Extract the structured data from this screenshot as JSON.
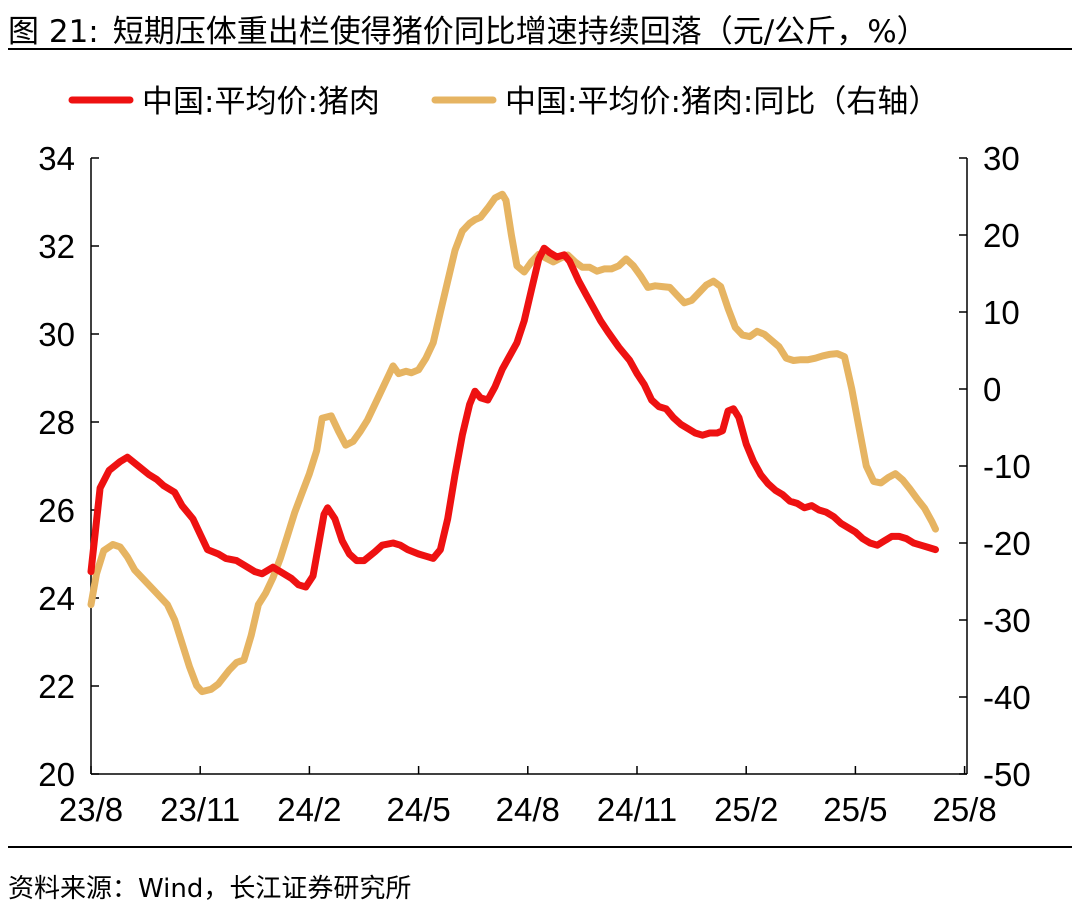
{
  "title": {
    "figure_no": "图 21:",
    "text": "短期压体重出栏使得猪价同比增速持续回落（元/公斤，%）"
  },
  "source": "资料来源：Wind，长江证券研究所",
  "colors": {
    "price": "#ee1111",
    "yoy": "#e6b462",
    "axis": "#000000"
  },
  "chart_data": {
    "type": "line",
    "legend_position": "top",
    "grid": false,
    "x_ticks": [
      "23/8",
      "23/11",
      "24/2",
      "24/5",
      "24/8",
      "24/11",
      "25/2",
      "25/5",
      "25/8"
    ],
    "x_range_months": [
      0,
      24.2
    ],
    "left_axis": {
      "ylim": [
        20,
        34
      ],
      "ticks": [
        20,
        22,
        24,
        26,
        28,
        30,
        32,
        34
      ]
    },
    "right_axis": {
      "ylim": [
        -50,
        30
      ],
      "ticks": [
        -50,
        -40,
        -30,
        -20,
        -10,
        0,
        10,
        20,
        30
      ]
    },
    "series": [
      {
        "name": "中国:平均价:猪肉",
        "axis": "left",
        "color": "#ee1111",
        "points": [
          [
            0.0,
            24.6
          ],
          [
            0.25,
            26.5
          ],
          [
            0.5,
            26.9
          ],
          [
            0.8,
            27.1
          ],
          [
            1.0,
            27.2
          ],
          [
            1.3,
            27.0
          ],
          [
            1.6,
            26.8
          ],
          [
            1.8,
            26.7
          ],
          [
            2.0,
            26.55
          ],
          [
            2.3,
            26.4
          ],
          [
            2.5,
            26.1
          ],
          [
            2.8,
            25.8
          ],
          [
            3.0,
            25.45
          ],
          [
            3.2,
            25.1
          ],
          [
            3.5,
            25.0
          ],
          [
            3.7,
            24.9
          ],
          [
            4.0,
            24.85
          ],
          [
            4.2,
            24.75
          ],
          [
            4.5,
            24.6
          ],
          [
            4.7,
            24.55
          ],
          [
            4.9,
            24.65
          ],
          [
            5.0,
            24.7
          ],
          [
            5.2,
            24.6
          ],
          [
            5.5,
            24.45
          ],
          [
            5.7,
            24.3
          ],
          [
            5.9,
            24.25
          ],
          [
            6.1,
            24.5
          ],
          [
            6.25,
            25.2
          ],
          [
            6.4,
            25.9
          ],
          [
            6.5,
            26.05
          ],
          [
            6.7,
            25.8
          ],
          [
            6.9,
            25.3
          ],
          [
            7.1,
            25.0
          ],
          [
            7.3,
            24.85
          ],
          [
            7.5,
            24.85
          ],
          [
            7.8,
            25.05
          ],
          [
            8.0,
            25.2
          ],
          [
            8.3,
            25.25
          ],
          [
            8.5,
            25.2
          ],
          [
            8.7,
            25.1
          ],
          [
            9.0,
            25.0
          ],
          [
            9.2,
            24.95
          ],
          [
            9.4,
            24.9
          ],
          [
            9.6,
            25.1
          ],
          [
            9.8,
            25.8
          ],
          [
            10.0,
            26.8
          ],
          [
            10.2,
            27.7
          ],
          [
            10.4,
            28.4
          ],
          [
            10.55,
            28.7
          ],
          [
            10.7,
            28.55
          ],
          [
            10.9,
            28.5
          ],
          [
            11.1,
            28.8
          ],
          [
            11.3,
            29.2
          ],
          [
            11.5,
            29.5
          ],
          [
            11.7,
            29.8
          ],
          [
            11.9,
            30.3
          ],
          [
            12.1,
            31.0
          ],
          [
            12.3,
            31.7
          ],
          [
            12.45,
            31.95
          ],
          [
            12.6,
            31.85
          ],
          [
            12.8,
            31.75
          ],
          [
            13.0,
            31.8
          ],
          [
            13.15,
            31.65
          ],
          [
            13.4,
            31.2
          ],
          [
            13.6,
            30.9
          ],
          [
            13.8,
            30.6
          ],
          [
            14.0,
            30.3
          ],
          [
            14.2,
            30.05
          ],
          [
            14.5,
            29.7
          ],
          [
            14.8,
            29.4
          ],
          [
            15.0,
            29.1
          ],
          [
            15.2,
            28.85
          ],
          [
            15.4,
            28.5
          ],
          [
            15.6,
            28.35
          ],
          [
            15.8,
            28.3
          ],
          [
            16.0,
            28.1
          ],
          [
            16.2,
            27.95
          ],
          [
            16.4,
            27.85
          ],
          [
            16.6,
            27.75
          ],
          [
            16.8,
            27.7
          ],
          [
            17.0,
            27.75
          ],
          [
            17.2,
            27.75
          ],
          [
            17.35,
            27.8
          ],
          [
            17.5,
            28.25
          ],
          [
            17.65,
            28.3
          ],
          [
            17.8,
            28.1
          ],
          [
            18.0,
            27.5
          ],
          [
            18.2,
            27.1
          ],
          [
            18.4,
            26.8
          ],
          [
            18.6,
            26.6
          ],
          [
            18.8,
            26.45
          ],
          [
            19.0,
            26.35
          ],
          [
            19.2,
            26.2
          ],
          [
            19.4,
            26.15
          ],
          [
            19.6,
            26.05
          ],
          [
            19.8,
            26.1
          ],
          [
            20.0,
            26.0
          ],
          [
            20.2,
            25.95
          ],
          [
            20.4,
            25.85
          ],
          [
            20.6,
            25.7
          ],
          [
            20.8,
            25.6
          ],
          [
            21.0,
            25.5
          ],
          [
            21.2,
            25.35
          ],
          [
            21.4,
            25.25
          ],
          [
            21.6,
            25.2
          ],
          [
            21.8,
            25.3
          ],
          [
            22.0,
            25.4
          ],
          [
            22.2,
            25.4
          ],
          [
            22.4,
            25.35
          ],
          [
            22.6,
            25.25
          ],
          [
            22.8,
            25.2
          ],
          [
            23.0,
            25.15
          ],
          [
            23.2,
            25.1
          ]
        ]
      },
      {
        "name": "中国:平均价:猪肉:同比（右轴）",
        "axis": "right",
        "color": "#e6b462",
        "points": [
          [
            0.0,
            -28
          ],
          [
            0.15,
            -24
          ],
          [
            0.35,
            -21
          ],
          [
            0.6,
            -20.2
          ],
          [
            0.8,
            -20.5
          ],
          [
            1.0,
            -21.8
          ],
          [
            1.2,
            -23.5
          ],
          [
            1.5,
            -25
          ],
          [
            1.8,
            -26.5
          ],
          [
            2.1,
            -28
          ],
          [
            2.3,
            -30
          ],
          [
            2.5,
            -33
          ],
          [
            2.7,
            -36
          ],
          [
            2.9,
            -38.5
          ],
          [
            3.05,
            -39.3
          ],
          [
            3.3,
            -39
          ],
          [
            3.5,
            -38.3
          ],
          [
            3.8,
            -36.5
          ],
          [
            4.0,
            -35.5
          ],
          [
            4.2,
            -35.2
          ],
          [
            4.4,
            -32
          ],
          [
            4.6,
            -28
          ],
          [
            4.8,
            -26.5
          ],
          [
            5.0,
            -24.5
          ],
          [
            5.2,
            -22
          ],
          [
            5.4,
            -19
          ],
          [
            5.6,
            -16
          ],
          [
            5.8,
            -13.5
          ],
          [
            6.0,
            -11
          ],
          [
            6.2,
            -8
          ],
          [
            6.35,
            -3.8
          ],
          [
            6.6,
            -3.5
          ],
          [
            6.8,
            -5.5
          ],
          [
            7.0,
            -7.3
          ],
          [
            7.2,
            -6.8
          ],
          [
            7.4,
            -5.5
          ],
          [
            7.6,
            -4
          ],
          [
            7.8,
            -2
          ],
          [
            8.0,
            0
          ],
          [
            8.2,
            2
          ],
          [
            8.3,
            3
          ],
          [
            8.45,
            2
          ],
          [
            8.65,
            2.3
          ],
          [
            8.8,
            2.1
          ],
          [
            9.0,
            2.5
          ],
          [
            9.2,
            4
          ],
          [
            9.4,
            6
          ],
          [
            9.6,
            10
          ],
          [
            9.8,
            14
          ],
          [
            10.0,
            18
          ],
          [
            10.2,
            20.5
          ],
          [
            10.4,
            21.5
          ],
          [
            10.55,
            22
          ],
          [
            10.7,
            22.3
          ],
          [
            10.9,
            23.5
          ],
          [
            11.1,
            24.8
          ],
          [
            11.3,
            25.3
          ],
          [
            11.4,
            24.5
          ],
          [
            11.55,
            20
          ],
          [
            11.7,
            16
          ],
          [
            11.9,
            15.2
          ],
          [
            12.1,
            16.5
          ],
          [
            12.3,
            17.5
          ],
          [
            12.5,
            17
          ],
          [
            12.7,
            16.5
          ],
          [
            12.9,
            17
          ],
          [
            13.1,
            17.4
          ],
          [
            13.3,
            16.5
          ],
          [
            13.5,
            15.8
          ],
          [
            13.7,
            15.8
          ],
          [
            13.9,
            15.3
          ],
          [
            14.1,
            15.6
          ],
          [
            14.3,
            15.6
          ],
          [
            14.5,
            16
          ],
          [
            14.7,
            16.9
          ],
          [
            14.9,
            16
          ],
          [
            15.1,
            14.7
          ],
          [
            15.3,
            13.2
          ],
          [
            15.5,
            13.4
          ],
          [
            15.7,
            13.3
          ],
          [
            15.9,
            13.2
          ],
          [
            16.1,
            12.2
          ],
          [
            16.3,
            11.2
          ],
          [
            16.5,
            11.5
          ],
          [
            16.7,
            12.5
          ],
          [
            16.9,
            13.5
          ],
          [
            17.1,
            14
          ],
          [
            17.3,
            13.3
          ],
          [
            17.5,
            10.5
          ],
          [
            17.7,
            8
          ],
          [
            17.9,
            7
          ],
          [
            18.1,
            6.8
          ],
          [
            18.3,
            7.5
          ],
          [
            18.5,
            7.1
          ],
          [
            18.7,
            6.3
          ],
          [
            18.9,
            5.5
          ],
          [
            19.1,
            4
          ],
          [
            19.3,
            3.7
          ],
          [
            19.5,
            3.8
          ],
          [
            19.7,
            3.8
          ],
          [
            19.9,
            4
          ],
          [
            20.1,
            4.3
          ],
          [
            20.3,
            4.5
          ],
          [
            20.5,
            4.6
          ],
          [
            20.7,
            4.2
          ],
          [
            20.9,
            0
          ],
          [
            21.1,
            -5
          ],
          [
            21.3,
            -10
          ],
          [
            21.5,
            -12
          ],
          [
            21.7,
            -12.2
          ],
          [
            21.9,
            -11.5
          ],
          [
            22.1,
            -11
          ],
          [
            22.3,
            -11.8
          ],
          [
            22.5,
            -13
          ],
          [
            22.7,
            -14.3
          ],
          [
            22.9,
            -15.5
          ],
          [
            23.1,
            -17.2
          ],
          [
            23.2,
            -18.2
          ]
        ]
      }
    ]
  }
}
